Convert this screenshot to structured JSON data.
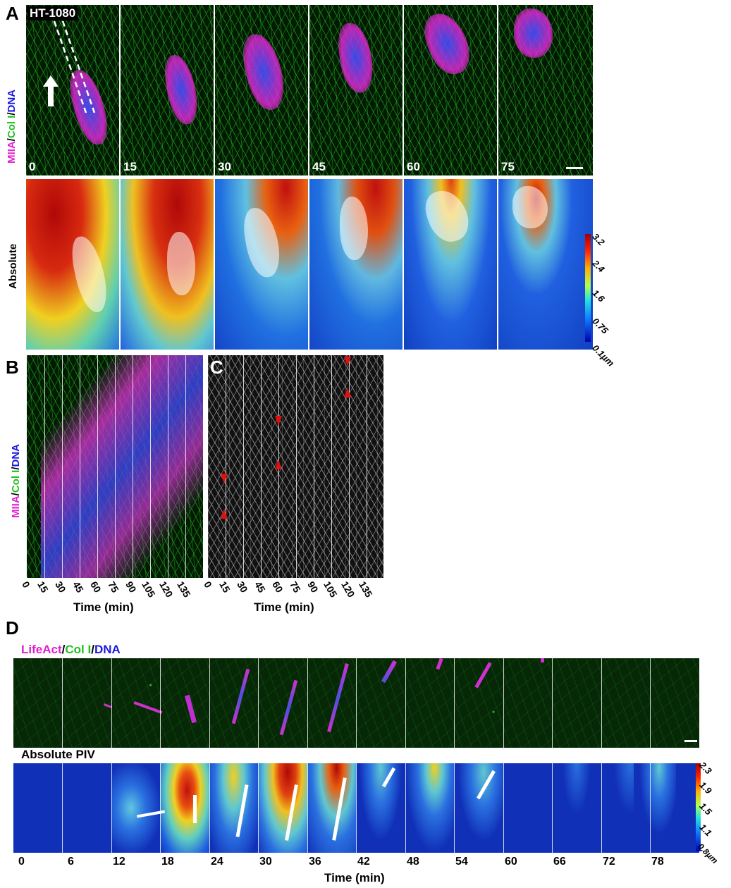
{
  "panels": {
    "A": {
      "letter": "A",
      "cell_line": "HT-1080",
      "channel_label": {
        "part1": "MIIA",
        "sep1": "/",
        "part2": "Col I",
        "sep2": "/",
        "part3": "DNA"
      },
      "frames": [
        "0",
        "15",
        "30",
        "45",
        "60",
        "75"
      ],
      "piv_row_label": "Absolute",
      "colorbar_ticks": [
        "3.2",
        "2.4",
        "1.6",
        "0.75",
        "0.1µm"
      ]
    },
    "B": {
      "letter": "B",
      "channel_label": {
        "part1": "MIIA",
        "sep1": "/",
        "part2": "Col I",
        "sep2": "/",
        "part3": "DNA"
      },
      "time_ticks": [
        "0",
        "15",
        "30",
        "45",
        "60",
        "75",
        "90",
        "105",
        "120",
        "135"
      ],
      "axis_title": "Time (min)"
    },
    "C": {
      "letter": "C",
      "time_ticks": [
        "0",
        "15",
        "30",
        "45",
        "60",
        "75",
        "90",
        "105",
        "120",
        "135"
      ],
      "axis_title": "Time (min)"
    },
    "D": {
      "letter": "D",
      "channel_label": {
        "part1": "LifeAct",
        "sep1": "/",
        "part2": "Col I",
        "sep2": "/",
        "part3": "DNA"
      },
      "piv_row_label": "Absolute PIV",
      "time_ticks": [
        "0",
        "6",
        "12",
        "18",
        "24",
        "30",
        "36",
        "42",
        "48",
        "54",
        "60",
        "66",
        "72",
        "78"
      ],
      "axis_title": "Time (min)",
      "colorbar_ticks": [
        "2.3",
        "1.9",
        "1.5",
        "1.1",
        "0.8µm"
      ]
    }
  },
  "colors": {
    "magenta": "#e020d0",
    "green": "#20c020",
    "blue": "#1a1ae0",
    "arrowhead_red": "#e01010"
  }
}
